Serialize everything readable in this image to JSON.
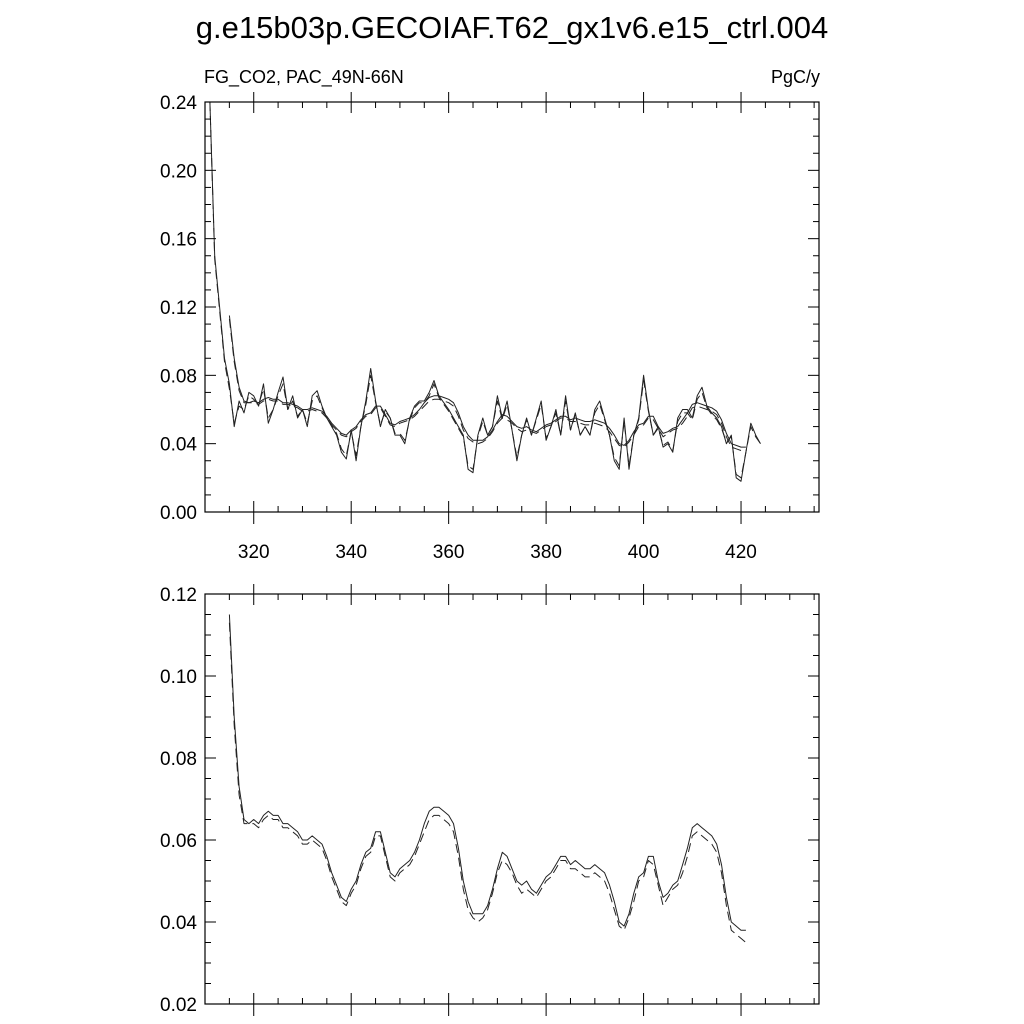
{
  "title": "g.e15b03p.GECOIAF.T62_gx1v6.e15_ctrl.004",
  "chart_data": [
    {
      "type": "line",
      "left_label": "FG_CO2, PAC_49N-66N",
      "right_label": "PgC/y",
      "xlim": [
        310,
        436
      ],
      "ylim": [
        0.0,
        0.24
      ],
      "yticks": [
        "0.00",
        "0.04",
        "0.08",
        "0.12",
        "0.16",
        "0.20",
        "0.24"
      ],
      "xticks": [
        "320",
        "340",
        "360",
        "380",
        "400",
        "420"
      ],
      "x_start": 311,
      "series": [
        {
          "style": "solid",
          "values": [
            0.24,
            0.15,
            0.12,
            0.09,
            0.075,
            0.05,
            0.065,
            0.058,
            0.07,
            0.068,
            0.062,
            0.075,
            0.052,
            0.06,
            0.07,
            0.079,
            0.06,
            0.068,
            0.055,
            0.06,
            0.05,
            0.068,
            0.071,
            0.062,
            0.055,
            0.05,
            0.045,
            0.035,
            0.031,
            0.048,
            0.03,
            0.05,
            0.065,
            0.084,
            0.065,
            0.05,
            0.06,
            0.055,
            0.045,
            0.045,
            0.04,
            0.055,
            0.062,
            0.065,
            0.065,
            0.07,
            0.077,
            0.068,
            0.064,
            0.06,
            0.055,
            0.05,
            0.045,
            0.025,
            0.023,
            0.045,
            0.055,
            0.045,
            0.05,
            0.068,
            0.055,
            0.065,
            0.048,
            0.03,
            0.045,
            0.055,
            0.045,
            0.055,
            0.065,
            0.042,
            0.05,
            0.06,
            0.045,
            0.068,
            0.048,
            0.058,
            0.045,
            0.05,
            0.045,
            0.06,
            0.065,
            0.055,
            0.045,
            0.03,
            0.025,
            0.055,
            0.025,
            0.045,
            0.055,
            0.08,
            0.06,
            0.045,
            0.05,
            0.038,
            0.04,
            0.035,
            0.055,
            0.06,
            0.06,
            0.055,
            0.068,
            0.073,
            0.062,
            0.058,
            0.055,
            0.05,
            0.04,
            0.045,
            0.02,
            0.018,
            0.035,
            0.052,
            0.045,
            0.04
          ]
        },
        {
          "style": "dashed",
          "values": [
            0.24,
            0.148,
            0.118,
            0.088,
            0.072,
            0.052,
            0.062,
            0.06,
            0.068,
            0.066,
            0.063,
            0.072,
            0.055,
            0.06,
            0.068,
            0.075,
            0.06,
            0.065,
            0.056,
            0.06,
            0.052,
            0.065,
            0.068,
            0.061,
            0.055,
            0.051,
            0.046,
            0.037,
            0.033,
            0.047,
            0.033,
            0.05,
            0.063,
            0.08,
            0.064,
            0.051,
            0.059,
            0.055,
            0.046,
            0.046,
            0.042,
            0.054,
            0.061,
            0.064,
            0.064,
            0.068,
            0.075,
            0.067,
            0.063,
            0.059,
            0.054,
            0.049,
            0.044,
            0.027,
            0.025,
            0.044,
            0.053,
            0.045,
            0.05,
            0.065,
            0.054,
            0.063,
            0.048,
            0.032,
            0.045,
            0.054,
            0.045,
            0.054,
            0.063,
            0.043,
            0.05,
            0.058,
            0.045,
            0.065,
            0.048,
            0.057,
            0.045,
            0.05,
            0.045,
            0.058,
            0.063,
            0.054,
            0.045,
            0.032,
            0.027,
            0.053,
            0.027,
            0.045,
            0.054,
            0.077,
            0.059,
            0.045,
            0.049,
            0.039,
            0.041,
            0.036,
            0.053,
            0.058,
            0.058,
            0.054,
            0.066,
            0.07,
            0.061,
            0.057,
            0.054,
            0.049,
            0.041,
            0.044,
            0.022,
            0.02,
            0.035,
            0.05,
            0.044,
            0.04
          ]
        },
        {
          "style": "solid",
          "values": [
            null,
            null,
            null,
            null,
            0.115,
            0.09,
            0.073,
            0.065,
            0.064,
            0.065,
            0.064,
            0.066,
            0.067,
            0.066,
            0.066,
            0.064,
            0.064,
            0.063,
            0.062,
            0.06,
            0.06,
            0.061,
            0.06,
            0.059,
            0.056,
            0.052,
            0.049,
            0.046,
            0.045,
            0.048,
            0.05,
            0.054,
            0.057,
            0.058,
            0.062,
            0.062,
            0.057,
            0.052,
            0.051,
            0.053,
            0.054,
            0.055,
            0.057,
            0.06,
            0.064,
            0.067,
            0.068,
            0.068,
            0.067,
            0.066,
            0.064,
            0.058,
            0.05,
            0.045,
            0.042,
            0.042,
            0.042,
            0.044,
            0.048,
            0.053,
            0.057,
            0.056,
            0.053,
            0.05,
            0.049,
            0.05,
            0.048,
            0.047,
            0.049,
            0.051,
            0.052,
            0.054,
            0.056,
            0.056,
            0.054,
            0.055,
            0.054,
            0.053,
            0.053,
            0.054,
            0.053,
            0.052,
            0.049,
            0.045,
            0.04,
            0.039,
            0.042,
            0.047,
            0.051,
            0.052,
            0.056,
            0.056,
            0.05,
            0.046,
            0.047,
            0.049,
            0.05,
            0.054,
            0.058,
            0.063,
            0.064,
            0.063,
            0.062,
            0.061,
            0.059,
            0.054,
            0.046,
            0.04,
            0.039,
            0.038,
            0.038,
            null,
            null,
            null
          ]
        },
        {
          "style": "dashed",
          "values": [
            null,
            null,
            null,
            null,
            0.113,
            0.088,
            0.071,
            0.064,
            0.064,
            0.064,
            0.063,
            0.065,
            0.066,
            0.065,
            0.065,
            0.063,
            0.063,
            0.062,
            0.061,
            0.059,
            0.059,
            0.06,
            0.059,
            0.058,
            0.055,
            0.051,
            0.048,
            0.045,
            0.044,
            0.047,
            0.049,
            0.053,
            0.056,
            0.057,
            0.061,
            0.061,
            0.056,
            0.051,
            0.05,
            0.052,
            0.053,
            0.054,
            0.056,
            0.059,
            0.062,
            0.065,
            0.066,
            0.066,
            0.065,
            0.064,
            0.062,
            0.056,
            0.048,
            0.043,
            0.041,
            0.04,
            0.041,
            0.043,
            0.047,
            0.052,
            0.055,
            0.054,
            0.052,
            0.049,
            0.047,
            0.048,
            0.047,
            0.046,
            0.048,
            0.05,
            0.051,
            0.053,
            0.055,
            0.055,
            0.053,
            0.053,
            0.052,
            0.051,
            0.051,
            0.052,
            0.051,
            0.05,
            0.047,
            0.043,
            0.039,
            0.038,
            0.041,
            0.045,
            0.05,
            0.051,
            0.055,
            0.054,
            0.049,
            0.044,
            0.046,
            0.048,
            0.049,
            0.052,
            0.056,
            0.061,
            0.062,
            0.061,
            0.06,
            0.059,
            0.057,
            0.052,
            0.044,
            0.038,
            0.037,
            0.036,
            0.035,
            null,
            null,
            null
          ]
        }
      ]
    },
    {
      "type": "line",
      "xlim": [
        310,
        436
      ],
      "ylim": [
        0.02,
        0.12
      ],
      "yticks": [
        "0.02",
        "0.04",
        "0.06",
        "0.08",
        "0.10",
        "0.12"
      ],
      "x_start": 311,
      "series": [
        {
          "style": "solid",
          "values": [
            null,
            null,
            null,
            null,
            0.115,
            0.09,
            0.073,
            0.065,
            0.064,
            0.065,
            0.064,
            0.066,
            0.067,
            0.066,
            0.066,
            0.064,
            0.064,
            0.063,
            0.062,
            0.06,
            0.06,
            0.061,
            0.06,
            0.059,
            0.056,
            0.052,
            0.049,
            0.046,
            0.045,
            0.048,
            0.05,
            0.054,
            0.057,
            0.058,
            0.062,
            0.062,
            0.057,
            0.052,
            0.051,
            0.053,
            0.054,
            0.055,
            0.057,
            0.06,
            0.064,
            0.067,
            0.068,
            0.068,
            0.067,
            0.066,
            0.064,
            0.058,
            0.05,
            0.045,
            0.042,
            0.042,
            0.042,
            0.044,
            0.048,
            0.053,
            0.057,
            0.056,
            0.053,
            0.05,
            0.049,
            0.05,
            0.048,
            0.047,
            0.049,
            0.051,
            0.052,
            0.054,
            0.056,
            0.056,
            0.054,
            0.055,
            0.054,
            0.053,
            0.053,
            0.054,
            0.053,
            0.052,
            0.049,
            0.045,
            0.04,
            0.039,
            0.042,
            0.047,
            0.051,
            0.052,
            0.056,
            0.056,
            0.05,
            0.046,
            0.047,
            0.049,
            0.05,
            0.054,
            0.058,
            0.063,
            0.064,
            0.063,
            0.062,
            0.061,
            0.059,
            0.054,
            0.046,
            0.04,
            0.039,
            0.038,
            0.038,
            null,
            null,
            null
          ]
        },
        {
          "style": "dashed",
          "values": [
            null,
            null,
            null,
            null,
            0.113,
            0.088,
            0.071,
            0.064,
            0.064,
            0.064,
            0.063,
            0.065,
            0.066,
            0.065,
            0.065,
            0.063,
            0.063,
            0.062,
            0.061,
            0.059,
            0.059,
            0.06,
            0.059,
            0.058,
            0.055,
            0.051,
            0.048,
            0.045,
            0.044,
            0.047,
            0.049,
            0.053,
            0.056,
            0.057,
            0.061,
            0.061,
            0.056,
            0.051,
            0.05,
            0.052,
            0.053,
            0.054,
            0.056,
            0.059,
            0.062,
            0.065,
            0.066,
            0.066,
            0.065,
            0.064,
            0.062,
            0.056,
            0.048,
            0.043,
            0.041,
            0.04,
            0.041,
            0.043,
            0.047,
            0.052,
            0.055,
            0.054,
            0.052,
            0.049,
            0.047,
            0.048,
            0.047,
            0.046,
            0.048,
            0.05,
            0.051,
            0.053,
            0.055,
            0.055,
            0.053,
            0.053,
            0.052,
            0.051,
            0.051,
            0.052,
            0.051,
            0.05,
            0.047,
            0.043,
            0.039,
            0.038,
            0.041,
            0.045,
            0.05,
            0.051,
            0.055,
            0.054,
            0.049,
            0.044,
            0.046,
            0.048,
            0.049,
            0.052,
            0.056,
            0.061,
            0.062,
            0.061,
            0.06,
            0.059,
            0.057,
            0.052,
            0.044,
            0.038,
            0.037,
            0.036,
            0.035,
            null,
            null,
            null
          ]
        }
      ]
    }
  ]
}
